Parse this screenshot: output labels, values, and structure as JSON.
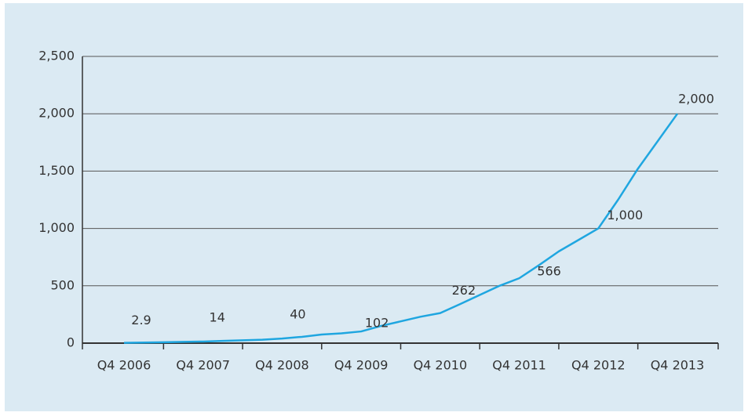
{
  "chart_data": {
    "type": "line",
    "categories": [
      "Q4 2006",
      null,
      null,
      null,
      "Q4 2007",
      null,
      null,
      null,
      "Q4 2008",
      null,
      null,
      null,
      "Q4 2009",
      null,
      null,
      null,
      "Q4 2010",
      null,
      null,
      null,
      "Q4 2011",
      null,
      null,
      null,
      "Q4 2012",
      null,
      null,
      null,
      "Q4 2013"
    ],
    "values": [
      2.9,
      5,
      8,
      11,
      14,
      20,
      25,
      30,
      40,
      55,
      75,
      85,
      102,
      150,
      190,
      230,
      262,
      340,
      420,
      500,
      566,
      680,
      800,
      900,
      1000,
      1250,
      1520,
      1760,
      2000
    ],
    "value_labels": [
      "2.9",
      null,
      null,
      null,
      "14",
      null,
      null,
      null,
      "40",
      null,
      null,
      null,
      "102",
      null,
      null,
      null,
      "262",
      null,
      null,
      null,
      "566",
      null,
      null,
      null,
      "1,000",
      null,
      null,
      null,
      "2,000"
    ],
    "color": "#1fa6e0",
    "ylim": [
      0,
      2500
    ],
    "yticks": [
      0,
      500,
      {
        "value": 1000,
        "label": "1,000"
      },
      {
        "value": 1500,
        "label": "1,500"
      },
      {
        "value": 2000,
        "label": "2,000"
      },
      {
        "value": 2500,
        "label": "2,500"
      }
    ],
    "grid": true
  }
}
